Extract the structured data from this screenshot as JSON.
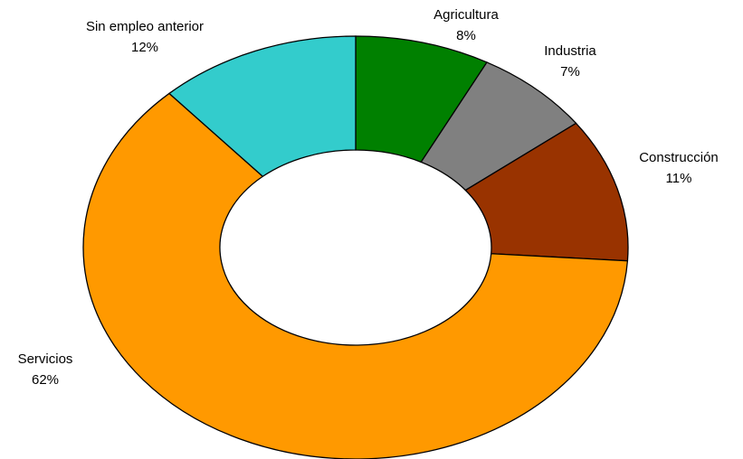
{
  "chart_data": {
    "type": "donut",
    "categories": [
      "Agricultura",
      "Industria",
      "Construcción",
      "Servicios",
      "Sin empleo anterior"
    ],
    "values": [
      8,
      7,
      11,
      62,
      12
    ],
    "value_labels": [
      "8%",
      "7%",
      "11%",
      "62%",
      "12%"
    ],
    "colors": [
      "#008000",
      "#808080",
      "#993300",
      "#ff9900",
      "#33cccc"
    ]
  }
}
